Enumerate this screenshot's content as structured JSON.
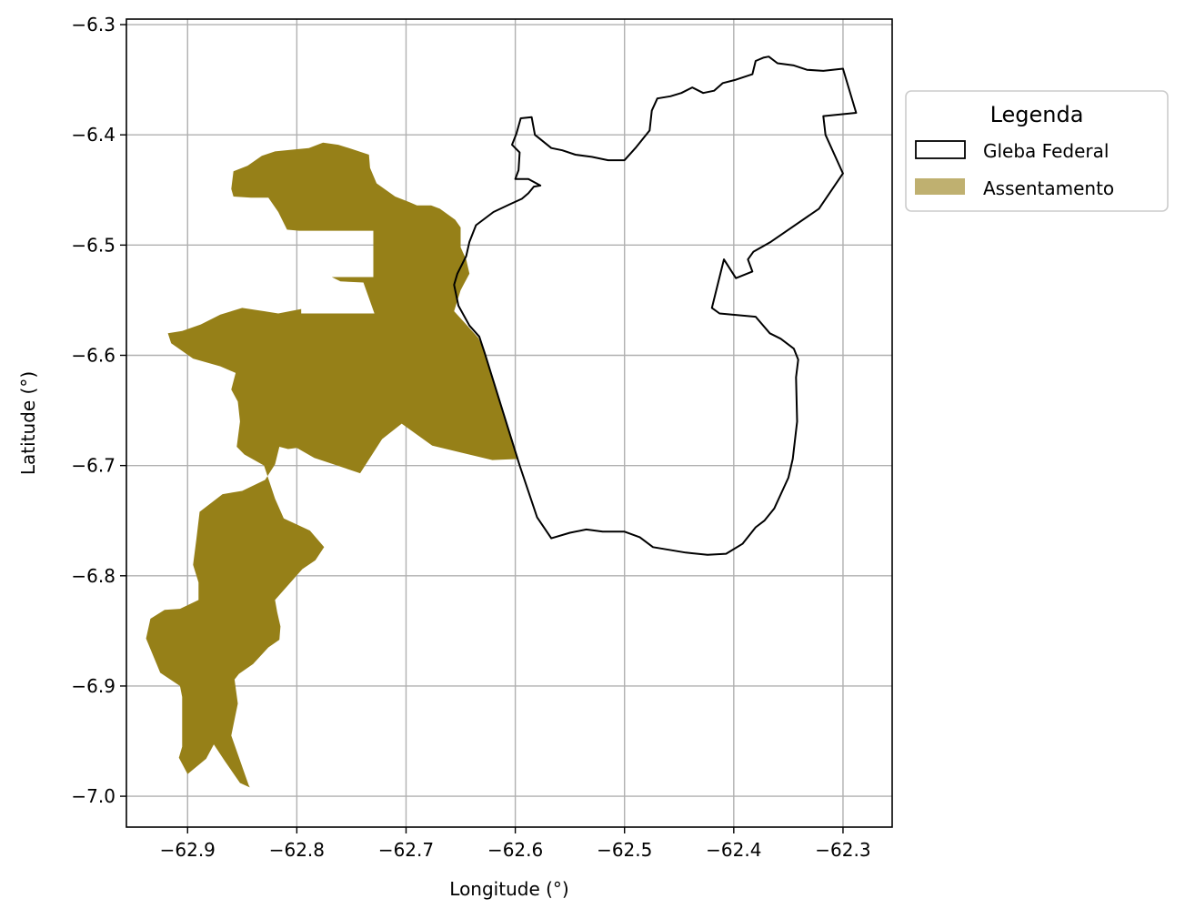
{
  "map": {
    "xlabel": "Longitude (°)",
    "ylabel": "Latitude (°)",
    "xlim": [
      -62.956,
      -62.255
    ],
    "ylim": [
      -7.028,
      -6.295
    ],
    "xticks": [
      -62.9,
      -62.8,
      -62.7,
      -62.6,
      -62.5,
      -62.4,
      -62.3
    ],
    "xtick_labels": [
      "−62.9",
      "−62.8",
      "−62.7",
      "−62.6",
      "−62.5",
      "−62.4",
      "−62.3"
    ],
    "yticks": [
      -6.3,
      -6.4,
      -6.5,
      -6.6,
      -6.7,
      -6.8,
      -6.9,
      -7.0
    ],
    "ytick_labels": [
      "−6.3",
      "−6.4",
      "−6.5",
      "−6.6",
      "−6.7",
      "−6.8",
      "−6.9",
      "−7.0"
    ],
    "grid": true,
    "legend": {
      "title": "Legenda",
      "placement": "outside-right-top",
      "items": [
        {
          "label": "Gleba Federal",
          "style": "outline",
          "edge_color": "#000000",
          "fill": "#ffffff"
        },
        {
          "label": "Assentamento",
          "style": "fill",
          "fill": "#bfb070"
        }
      ]
    },
    "colors": {
      "assentamento": "#968018",
      "gleba_outline": "#000000"
    }
  },
  "chart_data": {
    "type": "map",
    "xlabel": "Longitude (°)",
    "ylabel": "Latitude (°)",
    "xlim": [
      -62.956,
      -62.255
    ],
    "ylim": [
      -7.028,
      -6.295
    ],
    "grid": true,
    "layers": [
      {
        "name": "Gleba Federal",
        "geometry": "polygon-outline",
        "coordinates": [
          [
            -62.636,
            -6.482
          ],
          [
            -62.62,
            -6.47
          ],
          [
            -62.605,
            -6.463
          ],
          [
            -62.594,
            -6.458
          ],
          [
            -62.588,
            -6.453
          ],
          [
            -62.583,
            -6.447
          ],
          [
            -62.577,
            -6.446
          ],
          [
            -62.588,
            -6.44
          ],
          [
            -62.6,
            -6.44
          ],
          [
            -62.597,
            -6.432
          ],
          [
            -62.596,
            -6.416
          ],
          [
            -62.603,
            -6.409
          ],
          [
            -62.599,
            -6.399
          ],
          [
            -62.595,
            -6.385
          ],
          [
            -62.585,
            -6.384
          ],
          [
            -62.582,
            -6.4
          ],
          [
            -62.567,
            -6.412
          ],
          [
            -62.557,
            -6.414
          ],
          [
            -62.545,
            -6.418
          ],
          [
            -62.53,
            -6.42
          ],
          [
            -62.515,
            -6.423
          ],
          [
            -62.5,
            -6.423
          ],
          [
            -62.49,
            -6.412
          ],
          [
            -62.477,
            -6.396
          ],
          [
            -62.475,
            -6.378
          ],
          [
            -62.47,
            -6.367
          ],
          [
            -62.458,
            -6.365
          ],
          [
            -62.448,
            -6.362
          ],
          [
            -62.438,
            -6.357
          ],
          [
            -62.428,
            -6.362
          ],
          [
            -62.418,
            -6.36
          ],
          [
            -62.41,
            -6.353
          ],
          [
            -62.398,
            -6.35
          ],
          [
            -62.383,
            -6.345
          ],
          [
            -62.38,
            -6.333
          ],
          [
            -62.373,
            -6.33
          ],
          [
            -62.368,
            -6.329
          ],
          [
            -62.36,
            -6.335
          ],
          [
            -62.345,
            -6.337
          ],
          [
            -62.333,
            -6.341
          ],
          [
            -62.318,
            -6.342
          ],
          [
            -62.3,
            -6.34
          ],
          [
            -62.288,
            -6.38
          ],
          [
            -62.318,
            -6.383
          ],
          [
            -62.316,
            -6.4
          ],
          [
            -62.3,
            -6.435
          ],
          [
            -62.322,
            -6.467
          ],
          [
            -62.366,
            -6.497
          ],
          [
            -62.382,
            -6.506
          ],
          [
            -62.387,
            -6.513
          ],
          [
            -62.383,
            -6.524
          ],
          [
            -62.398,
            -6.53
          ],
          [
            -62.409,
            -6.513
          ],
          [
            -62.42,
            -6.557
          ],
          [
            -62.413,
            -6.562
          ],
          [
            -62.38,
            -6.565
          ],
          [
            -62.367,
            -6.58
          ],
          [
            -62.357,
            -6.585
          ],
          [
            -62.345,
            -6.594
          ],
          [
            -62.341,
            -6.604
          ],
          [
            -62.343,
            -6.62
          ],
          [
            -62.342,
            -6.66
          ],
          [
            -62.346,
            -6.694
          ],
          [
            -62.35,
            -6.711
          ],
          [
            -62.363,
            -6.739
          ],
          [
            -62.372,
            -6.75
          ],
          [
            -62.38,
            -6.756
          ],
          [
            -62.392,
            -6.771
          ],
          [
            -62.407,
            -6.78
          ],
          [
            -62.424,
            -6.781
          ],
          [
            -62.444,
            -6.779
          ],
          [
            -62.474,
            -6.774
          ],
          [
            -62.486,
            -6.765
          ],
          [
            -62.5,
            -6.76
          ],
          [
            -62.52,
            -6.76
          ],
          [
            -62.535,
            -6.758
          ],
          [
            -62.55,
            -6.761
          ],
          [
            -62.567,
            -6.766
          ],
          [
            -62.58,
            -6.747
          ],
          [
            -62.596,
            -6.7
          ],
          [
            -62.628,
            -6.598
          ],
          [
            -62.633,
            -6.583
          ],
          [
            -62.642,
            -6.573
          ],
          [
            -62.652,
            -6.555
          ],
          [
            -62.656,
            -6.536
          ],
          [
            -62.653,
            -6.526
          ],
          [
            -62.645,
            -6.51
          ],
          [
            -62.642,
            -6.497
          ],
          [
            -62.636,
            -6.482
          ]
        ]
      },
      {
        "name": "Assentamento",
        "geometry": "polygon-fill",
        "coordinates": [
          [
            -62.86,
            -6.449
          ],
          [
            -62.858,
            -6.433
          ],
          [
            -62.845,
            -6.428
          ],
          [
            -62.832,
            -6.419
          ],
          [
            -62.82,
            -6.415
          ],
          [
            -62.8,
            -6.413
          ],
          [
            -62.789,
            -6.412
          ],
          [
            -62.776,
            -6.407
          ],
          [
            -62.762,
            -6.409
          ],
          [
            -62.749,
            -6.413
          ],
          [
            -62.734,
            -6.418
          ],
          [
            -62.733,
            -6.43
          ],
          [
            -62.727,
            -6.444
          ],
          [
            -62.71,
            -6.456
          ],
          [
            -62.697,
            -6.461
          ],
          [
            -62.69,
            -6.464
          ],
          [
            -62.677,
            -6.464
          ],
          [
            -62.669,
            -6.467
          ],
          [
            -62.655,
            -6.477
          ],
          [
            -62.65,
            -6.484
          ],
          [
            -62.65,
            -6.502
          ],
          [
            -62.645,
            -6.513
          ],
          [
            -62.642,
            -6.526
          ],
          [
            -62.65,
            -6.541
          ],
          [
            -62.656,
            -6.56
          ],
          [
            -62.634,
            -6.584
          ],
          [
            -62.628,
            -6.597
          ],
          [
            -62.597,
            -6.694
          ],
          [
            -62.621,
            -6.695
          ],
          [
            -62.676,
            -6.682
          ],
          [
            -62.704,
            -6.662
          ],
          [
            -62.722,
            -6.676
          ],
          [
            -62.742,
            -6.707
          ],
          [
            -62.784,
            -6.693
          ],
          [
            -62.8,
            -6.684
          ],
          [
            -62.808,
            -6.685
          ],
          [
            -62.816,
            -6.683
          ],
          [
            -62.82,
            -6.699
          ],
          [
            -62.829,
            -6.713
          ],
          [
            -62.85,
            -6.723
          ],
          [
            -62.868,
            -6.726
          ],
          [
            -62.889,
            -6.742
          ],
          [
            -62.892,
            -6.767
          ],
          [
            -62.895,
            -6.79
          ],
          [
            -62.89,
            -6.806
          ],
          [
            -62.89,
            -6.822
          ],
          [
            -62.907,
            -6.83
          ],
          [
            -62.921,
            -6.831
          ],
          [
            -62.934,
            -6.839
          ],
          [
            -62.938,
            -6.857
          ],
          [
            -62.925,
            -6.888
          ],
          [
            -62.907,
            -6.9
          ],
          [
            -62.905,
            -6.91
          ],
          [
            -62.905,
            -6.955
          ],
          [
            -62.908,
            -6.965
          ],
          [
            -62.9,
            -6.98
          ],
          [
            -62.883,
            -6.966
          ],
          [
            -62.876,
            -6.953
          ],
          [
            -62.866,
            -6.968
          ],
          [
            -62.852,
            -6.988
          ],
          [
            -62.843,
            -6.992
          ],
          [
            -62.844,
            -6.99
          ],
          [
            -62.86,
            -6.945
          ],
          [
            -62.854,
            -6.916
          ],
          [
            -62.857,
            -6.894
          ],
          [
            -62.853,
            -6.889
          ],
          [
            -62.84,
            -6.88
          ],
          [
            -62.826,
            -6.865
          ],
          [
            -62.816,
            -6.858
          ],
          [
            -62.815,
            -6.846
          ],
          [
            -62.818,
            -6.833
          ],
          [
            -62.82,
            -6.822
          ],
          [
            -62.795,
            -6.794
          ],
          [
            -62.783,
            -6.786
          ],
          [
            -62.775,
            -6.774
          ],
          [
            -62.788,
            -6.759
          ],
          [
            -62.812,
            -6.748
          ],
          [
            -62.82,
            -6.73
          ],
          [
            -62.83,
            -6.7
          ],
          [
            -62.848,
            -6.69
          ],
          [
            -62.855,
            -6.683
          ],
          [
            -62.852,
            -6.66
          ],
          [
            -62.854,
            -6.642
          ],
          [
            -62.86,
            -6.631
          ],
          [
            -62.856,
            -6.616
          ],
          [
            -62.87,
            -6.61
          ],
          [
            -62.895,
            -6.603
          ],
          [
            -62.915,
            -6.589
          ],
          [
            -62.918,
            -6.58
          ],
          [
            -62.905,
            -6.578
          ],
          [
            -62.888,
            -6.572
          ],
          [
            -62.87,
            -6.563
          ],
          [
            -62.85,
            -6.557
          ],
          [
            -62.83,
            -6.56
          ],
          [
            -62.817,
            -6.562
          ],
          [
            -62.796,
            -6.558
          ],
          [
            -62.796,
            -6.562
          ],
          [
            -62.729,
            -6.562
          ],
          [
            -62.739,
            -6.534
          ],
          [
            -62.76,
            -6.533
          ],
          [
            -62.768,
            -6.529
          ],
          [
            -62.73,
            -6.529
          ],
          [
            -62.73,
            -6.487
          ],
          [
            -62.798,
            -6.487
          ],
          [
            -62.809,
            -6.486
          ],
          [
            -62.817,
            -6.47
          ],
          [
            -62.826,
            -6.457
          ],
          [
            -62.842,
            -6.457
          ],
          [
            -62.858,
            -6.456
          ],
          [
            -62.86,
            -6.449
          ]
        ]
      }
    ]
  }
}
